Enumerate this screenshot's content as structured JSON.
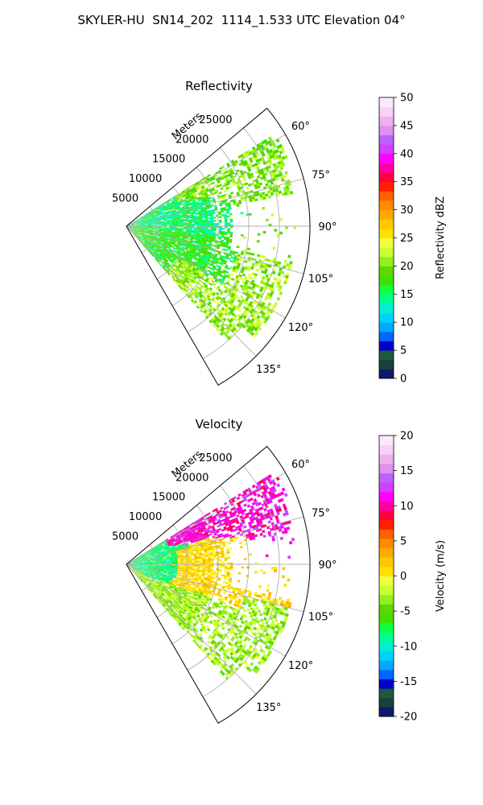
{
  "figure_title": "SKYLER-HU  SN14_202  1114_1.533 UTC Elevation 04°",
  "chart_data": [
    {
      "type": "heatmap",
      "projection": "polar sector (PPI)",
      "title": "Reflectivity",
      "range_label": "Meters",
      "range_ticks": [
        5000,
        10000,
        15000,
        20000,
        25000
      ],
      "range_max": 30000,
      "azimuth_range_deg": [
        50,
        150
      ],
      "azimuth_tick_labels": [
        "60°",
        "75°",
        "90°",
        "105°",
        "120°",
        "135°"
      ],
      "azimuth_ticks_deg": [
        60,
        75,
        90,
        105,
        120,
        135
      ],
      "colorbar_label": "Reflectivity dBZ",
      "colorbar_range": [
        0,
        50
      ],
      "colorbar_ticks": [
        0,
        5,
        10,
        15,
        20,
        25,
        30,
        35,
        40,
        45,
        50
      ],
      "colorbar_colors": [
        "#0b1a6a",
        "#1b3f3a",
        "#1f5a3a",
        "#0000c8",
        "#0066ff",
        "#00aaff",
        "#00d2ff",
        "#00f0d0",
        "#00ff90",
        "#10ff40",
        "#40e000",
        "#60d800",
        "#90f020",
        "#c8ff30",
        "#f0ff40",
        "#ffe000",
        "#ffc800",
        "#ffaa00",
        "#ff8c00",
        "#ff6000",
        "#ff2000",
        "#ff0040",
        "#ff00a0",
        "#ff00ff",
        "#d040ff",
        "#c060ff",
        "#e090f0",
        "#f0b0f0",
        "#f8d0f8",
        "#fbe8fb"
      ],
      "field_summary": [
        {
          "azimuth_deg": [
            58,
            70
          ],
          "range_m": [
            13000,
            30000
          ],
          "level": 20
        },
        {
          "azimuth_deg": [
            70,
            95
          ],
          "range_m": [
            0,
            15000
          ],
          "level": 15
        },
        {
          "azimuth_deg": [
            95,
            120
          ],
          "range_m": [
            0,
            18000
          ],
          "level": 17
        },
        {
          "azimuth_deg": [
            108,
            138
          ],
          "range_m": [
            12000,
            26000
          ],
          "level": 21
        }
      ]
    },
    {
      "type": "heatmap",
      "projection": "polar sector (PPI)",
      "title": "Velocity",
      "range_label": "Meters",
      "range_ticks": [
        5000,
        10000,
        15000,
        20000,
        25000
      ],
      "range_max": 30000,
      "azimuth_range_deg": [
        50,
        150
      ],
      "azimuth_tick_labels": [
        "60°",
        "75°",
        "90°",
        "105°",
        "120°",
        "135°"
      ],
      "azimuth_ticks_deg": [
        60,
        75,
        90,
        105,
        120,
        135
      ],
      "colorbar_label": "Velocity (m/s)",
      "colorbar_range": [
        -20,
        20
      ],
      "colorbar_ticks": [
        -20,
        -15,
        -10,
        -5,
        0,
        5,
        10,
        15,
        20
      ],
      "colorbar_colors": [
        "#0b1a6a",
        "#1b3f3a",
        "#1f5a3a",
        "#0000c8",
        "#0066ff",
        "#00aaff",
        "#00d2ff",
        "#00f0d0",
        "#00ff90",
        "#10ff40",
        "#40e000",
        "#60d800",
        "#90f020",
        "#c8ff30",
        "#f0ff40",
        "#ffe000",
        "#ffc800",
        "#ffaa00",
        "#ff8c00",
        "#ff6000",
        "#ff2000",
        "#ff0040",
        "#ff00a0",
        "#ff00ff",
        "#d040ff",
        "#c060ff",
        "#e090f0",
        "#f0b0f0",
        "#f8d0f8",
        "#fbe8fb"
      ],
      "field_summary": [
        {
          "azimuth_deg": [
            58,
            75
          ],
          "range_m": [
            17000,
            30000
          ],
          "level": 11
        },
        {
          "azimuth_deg": [
            70,
            105
          ],
          "range_m": [
            0,
            8000
          ],
          "level": -8
        },
        {
          "azimuth_deg": [
            75,
            110
          ],
          "range_m": [
            8000,
            20000
          ],
          "level": 1
        },
        {
          "azimuth_deg": [
            110,
            138
          ],
          "range_m": [
            12000,
            26000
          ],
          "level": -3
        }
      ]
    }
  ]
}
